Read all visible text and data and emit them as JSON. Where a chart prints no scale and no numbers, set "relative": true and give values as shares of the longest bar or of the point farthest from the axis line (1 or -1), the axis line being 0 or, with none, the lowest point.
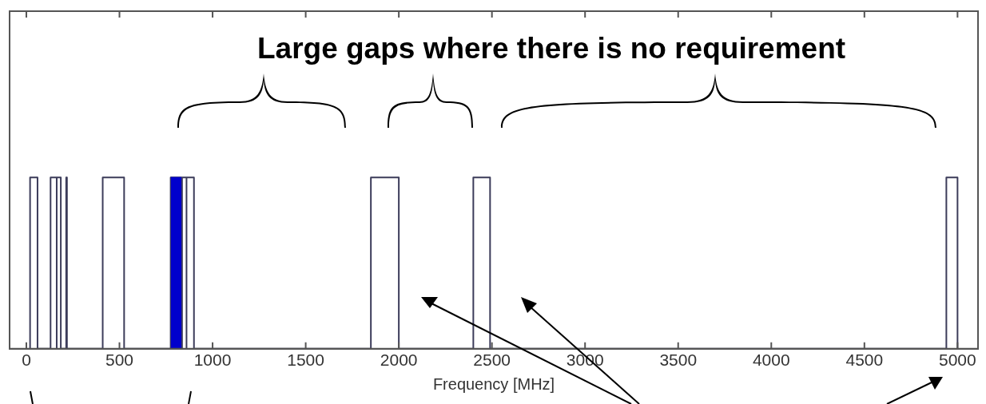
{
  "chart_data": {
    "type": "line",
    "relative": true,
    "xlabel": "Frequency [MHz]",
    "xlim": [
      -90,
      5110
    ],
    "xticks": [
      0,
      500,
      1000,
      1500,
      2000,
      2500,
      3000,
      3500,
      4000,
      4500,
      5000
    ],
    "grid": false,
    "legend": false,
    "annotations": [
      "Large gaps where there is no requirement"
    ],
    "series": [
      {
        "color": "#3c3c5a",
        "x": [
          20,
          20,
          60,
          60,
          130,
          130,
          163,
          163,
          163,
          185,
          185,
          214,
          214,
          218,
          218,
          410,
          410,
          525,
          525,
          775,
          775,
          836,
          836,
          836,
          860,
          860,
          860,
          900,
          900,
          1850,
          1850,
          2000,
          2000,
          2400,
          2400,
          2490,
          2490,
          4940,
          4940,
          5000,
          5000
        ],
        "values": [
          0,
          1,
          1,
          0,
          0,
          1,
          1,
          0,
          1,
          1,
          0,
          0,
          1,
          1,
          0,
          0,
          1,
          1,
          0,
          0,
          1,
          1,
          0,
          1,
          1,
          0,
          1,
          1,
          0,
          0,
          1,
          1,
          0,
          0,
          1,
          1,
          0,
          0,
          1,
          1,
          0
        ]
      },
      {
        "type": "area",
        "color": "#0000cc",
        "x": [
          775,
          833
        ],
        "values": [
          1,
          1
        ]
      }
    ]
  }
}
